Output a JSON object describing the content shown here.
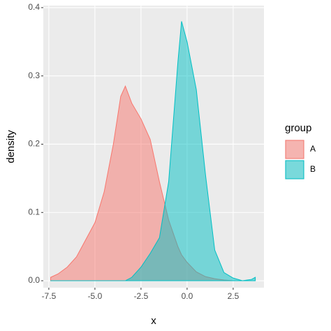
{
  "chart_data": {
    "type": "area",
    "x_label": "x",
    "y_label": "density",
    "legend_title": "group",
    "legend_position": "right",
    "grid": true,
    "x": [
      -7.4,
      -7,
      -6.5,
      -6,
      -5.5,
      -5,
      -4.5,
      -4,
      -3.6,
      -3.35,
      -3,
      -2.5,
      -2,
      -1.5,
      -1,
      -0.5,
      -0.3,
      0,
      0.5,
      1,
      1.5,
      2,
      2.5,
      3,
      3.5,
      3.7
    ],
    "series": [
      {
        "name": "A",
        "color": "#F8766D",
        "values": [
          0.005,
          0.01,
          0.02,
          0.035,
          0.06,
          0.085,
          0.13,
          0.2,
          0.27,
          0.285,
          0.26,
          0.237,
          0.207,
          0.145,
          0.089,
          0.05,
          0.038,
          0.027,
          0.013,
          0.006,
          0.003,
          0.001,
          0,
          0,
          0,
          0
        ]
      },
      {
        "name": "B",
        "color": "#00BFC4",
        "values": [
          0,
          0,
          0,
          0,
          0,
          0,
          0,
          0,
          0,
          0,
          0.005,
          0.02,
          0.04,
          0.063,
          0.145,
          0.32,
          0.38,
          0.35,
          0.28,
          0.155,
          0.045,
          0.012,
          0.004,
          0,
          0.002,
          0.005
        ]
      }
    ],
    "xlim": [
      -7.8,
      4.17
    ],
    "ylim": [
      -0.0102,
      0.403
    ],
    "xticks": [
      -7.5,
      {
        "value": -5,
        "label": "-5.0"
      },
      -2.5,
      {
        "value": 0,
        "label": "0.0"
      },
      2.5
    ],
    "yticks": [
      {
        "value": 0,
        "label": "0.0"
      },
      0.1,
      0.2,
      0.3,
      0.4
    ]
  }
}
